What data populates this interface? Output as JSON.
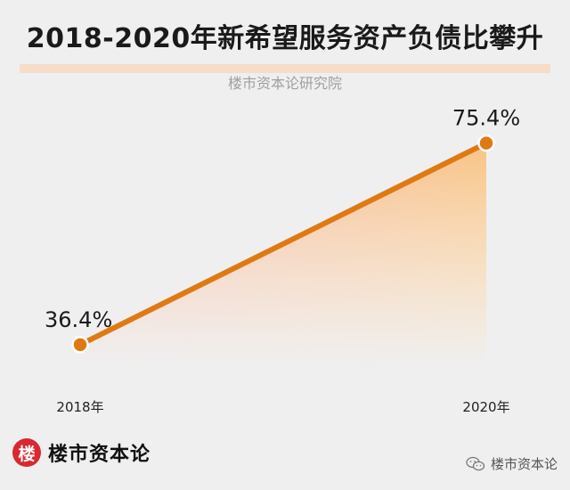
{
  "header": {
    "title": "2018-2020年新希望服务资产负债比攀升",
    "subtitle": "楼市资本论研究院"
  },
  "chart_data": {
    "type": "line",
    "title": "2018-2020年新希望服务资产负债比攀升",
    "subtitle": "楼市资本论研究院",
    "categories": [
      "2018年",
      "2020年"
    ],
    "values": [
      36.4,
      75.4
    ],
    "data_labels": [
      "36.4%",
      "75.4%"
    ],
    "xlabel": "",
    "ylabel": "",
    "ylim": [
      0,
      100
    ],
    "grid": false,
    "legend": "none"
  },
  "footer": {
    "logo_char": "楼",
    "brand": "楼市资本论",
    "wechat_label": "楼市资本论"
  },
  "colors": {
    "line": "#df7a12",
    "fill_top": "#f0a050",
    "badge": "#d9282f",
    "title_underline": "#f7dcc8"
  },
  "icons": {
    "wechat": "wechat-icon"
  }
}
